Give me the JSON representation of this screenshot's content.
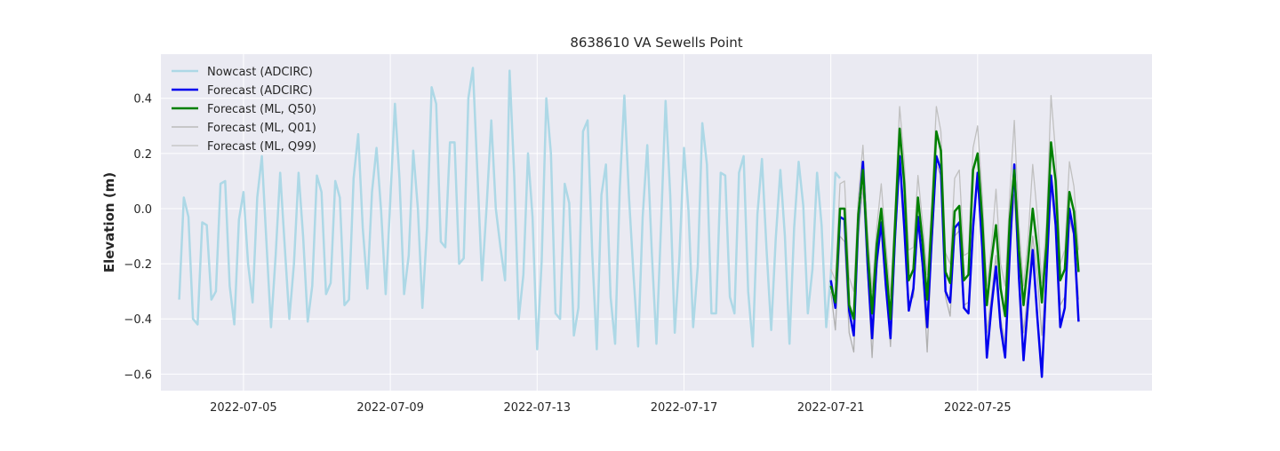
{
  "chart_data": {
    "type": "line",
    "title": "8638610 VA Sewells Point",
    "xlabel": "",
    "ylabel": "Elevation (m)",
    "x_start": "2022-07-03T06:00",
    "x_range": [
      "2022-07-02T18:00",
      "2022-07-29T18:00"
    ],
    "ylim": [
      -0.66,
      0.56
    ],
    "x_ticks": [
      "2022-07-05",
      "2022-07-09",
      "2022-07-13",
      "2022-07-17",
      "2022-07-21",
      "2022-07-25"
    ],
    "y_ticks": [
      0.4,
      0.2,
      0.0,
      -0.2,
      -0.4,
      -0.6
    ],
    "y_tick_labels": [
      "0.4",
      "0.2",
      "0.0",
      "−0.2",
      "−0.4",
      "−0.6"
    ],
    "grid": true,
    "legend_position": "top-left",
    "series": [
      {
        "name": "Nowcast (ADCIRC)",
        "color": "#add8e6",
        "x_start": "2022-07-03T06:00",
        "step_hours": 3,
        "values": [
          -0.33,
          0.04,
          -0.03,
          -0.4,
          -0.42,
          -0.05,
          -0.06,
          -0.33,
          -0.3,
          0.09,
          0.1,
          -0.28,
          -0.42,
          -0.04,
          0.06,
          -0.2,
          -0.34,
          0.04,
          0.19,
          -0.12,
          -0.43,
          -0.17,
          0.13,
          -0.14,
          -0.4,
          -0.2,
          0.13,
          -0.1,
          -0.41,
          -0.28,
          0.12,
          0.06,
          -0.31,
          -0.27,
          0.1,
          0.04,
          -0.35,
          -0.33,
          0.11,
          0.27,
          -0.07,
          -0.29,
          0.06,
          0.22,
          -0.01,
          -0.31,
          0.03,
          0.38,
          0.11,
          -0.31,
          -0.17,
          0.21,
          0.0,
          -0.36,
          -0.07,
          0.44,
          0.38,
          -0.12,
          -0.14,
          0.24,
          0.24,
          -0.2,
          -0.18,
          0.4,
          0.51,
          0.12,
          -0.26,
          0.01,
          0.32,
          0.0,
          -0.14,
          -0.26,
          0.5,
          0.12,
          -0.4,
          -0.24,
          0.2,
          -0.03,
          -0.51,
          -0.19,
          0.4,
          0.2,
          -0.38,
          -0.4,
          0.09,
          0.02,
          -0.46,
          -0.36,
          0.28,
          0.32,
          -0.16,
          -0.51,
          0.05,
          0.16,
          -0.32,
          -0.49,
          0.07,
          0.41,
          0.05,
          -0.24,
          -0.5,
          -0.03,
          0.23,
          -0.16,
          -0.49,
          -0.06,
          0.39,
          0.05,
          -0.45,
          -0.18,
          0.22,
          -0.01,
          -0.43,
          -0.21,
          0.31,
          0.16,
          -0.38,
          -0.38,
          0.13,
          0.12,
          -0.32,
          -0.38,
          0.13,
          0.19,
          -0.3,
          -0.5,
          -0.02,
          0.18,
          -0.15,
          -0.44,
          -0.11,
          0.14,
          -0.1,
          -0.49,
          -0.07,
          0.17,
          0.01,
          -0.38,
          -0.22,
          0.13,
          -0.06,
          -0.43,
          -0.24,
          0.13,
          0.11
        ]
      },
      {
        "name": "Forecast (ADCIRC)",
        "color": "#0000ee",
        "x_start": "2022-07-21T00:00",
        "step_hours": 3,
        "values": [
          -0.26,
          -0.36,
          -0.03,
          -0.04,
          -0.37,
          -0.46,
          -0.04,
          0.17,
          -0.2,
          -0.47,
          -0.19,
          -0.05,
          -0.28,
          -0.47,
          -0.1,
          0.19,
          -0.07,
          -0.37,
          -0.29,
          -0.03,
          -0.2,
          -0.43,
          -0.11,
          0.19,
          0.14,
          -0.3,
          -0.34,
          -0.07,
          -0.05,
          -0.36,
          -0.38,
          -0.07,
          0.13,
          -0.14,
          -0.54,
          -0.36,
          -0.21,
          -0.43,
          -0.54,
          -0.16,
          0.16,
          -0.25,
          -0.55,
          -0.34,
          -0.15,
          -0.39,
          -0.61,
          -0.24,
          0.12,
          -0.06,
          -0.43,
          -0.36,
          0.0,
          -0.09,
          -0.41
        ]
      },
      {
        "name": "Forecast (ML, Q50)",
        "color": "#008000",
        "x_start": "2022-07-21T00:00",
        "step_hours": 3,
        "values": [
          -0.28,
          -0.34,
          0.0,
          0.0,
          -0.35,
          -0.4,
          -0.02,
          0.14,
          -0.15,
          -0.38,
          -0.13,
          0.0,
          -0.2,
          -0.4,
          -0.06,
          0.29,
          0.09,
          -0.26,
          -0.22,
          0.04,
          -0.12,
          -0.33,
          -0.04,
          0.28,
          0.21,
          -0.23,
          -0.27,
          -0.01,
          0.01,
          -0.26,
          -0.24,
          0.14,
          0.2,
          -0.04,
          -0.35,
          -0.19,
          -0.06,
          -0.29,
          -0.39,
          -0.04,
          0.14,
          -0.15,
          -0.35,
          -0.19,
          0.0,
          -0.14,
          -0.34,
          -0.13,
          0.24,
          0.1,
          -0.26,
          -0.22,
          0.06,
          -0.01,
          -0.23
        ]
      },
      {
        "name": "Forecast (ML, Q01)",
        "color": "#b0b0b0",
        "x_start": "2022-07-21T00:00",
        "step_hours": 3,
        "values": [
          -0.3,
          -0.44,
          -0.1,
          -0.12,
          -0.45,
          -0.52,
          -0.1,
          0.08,
          -0.23,
          -0.54,
          -0.22,
          -0.06,
          -0.26,
          -0.5,
          -0.14,
          0.18,
          -0.02,
          -0.34,
          -0.32,
          -0.05,
          -0.22,
          -0.52,
          -0.14,
          0.16,
          0.12,
          -0.32,
          -0.39,
          -0.1,
          -0.08,
          -0.35,
          -0.34,
          -0.04,
          0.09,
          -0.14,
          -0.45,
          -0.32,
          -0.17,
          -0.4,
          -0.49,
          -0.15,
          0.05,
          -0.24,
          -0.45,
          -0.3,
          -0.1,
          -0.24,
          -0.46,
          -0.24,
          0.12,
          0.0,
          -0.35,
          -0.32,
          -0.04,
          -0.1,
          -0.33
        ]
      },
      {
        "name": "Forecast (ML, Q99)",
        "color": "#c0c0c0",
        "x_start": "2022-07-21T00:00",
        "step_hours": 3,
        "values": [
          -0.22,
          -0.26,
          0.09,
          0.1,
          -0.25,
          -0.3,
          0.04,
          0.23,
          -0.08,
          -0.3,
          -0.07,
          0.09,
          -0.13,
          -0.32,
          0.0,
          0.37,
          0.17,
          -0.15,
          -0.14,
          0.12,
          -0.05,
          -0.24,
          0.02,
          0.37,
          0.28,
          -0.16,
          -0.2,
          0.11,
          0.14,
          -0.17,
          -0.16,
          0.22,
          0.3,
          0.05,
          -0.28,
          -0.14,
          0.07,
          -0.2,
          -0.28,
          0.05,
          0.32,
          -0.06,
          -0.28,
          -0.11,
          0.16,
          -0.02,
          -0.27,
          -0.05,
          0.41,
          0.2,
          -0.2,
          -0.15,
          0.17,
          0.08,
          -0.15
        ]
      }
    ]
  }
}
